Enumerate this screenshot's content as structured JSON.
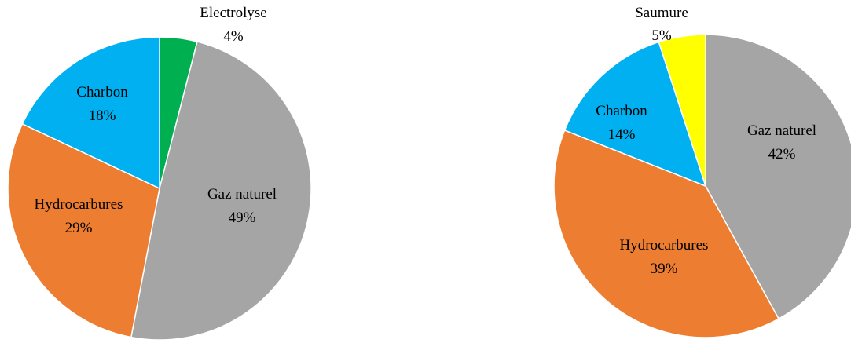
{
  "chart_data": [
    {
      "type": "pie",
      "title": "",
      "slices": [
        {
          "label": "Electrolyse",
          "value": 4,
          "value_text": "4%",
          "color": "#00B050"
        },
        {
          "label": "Gaz naturel",
          "value": 49,
          "value_text": "49%",
          "color": "#A5A5A5"
        },
        {
          "label": "Hydrocarbures",
          "value": 29,
          "value_text": "29%",
          "color": "#ED7D31"
        },
        {
          "label": "Charbon",
          "value": 18,
          "value_text": "18%",
          "color": "#00B0F0"
        }
      ]
    },
    {
      "type": "pie",
      "title": "",
      "slices": [
        {
          "label": "Gaz naturel",
          "value": 42,
          "value_text": "42%",
          "color": "#A5A5A5"
        },
        {
          "label": "Hydrocarbures",
          "value": 39,
          "value_text": "39%",
          "color": "#ED7D31"
        },
        {
          "label": "Charbon",
          "value": 14,
          "value_text": "14%",
          "color": "#00B0F0"
        },
        {
          "label": "Saumure",
          "value": 5,
          "value_text": "5%",
          "color": "#FFFF00"
        }
      ]
    }
  ]
}
